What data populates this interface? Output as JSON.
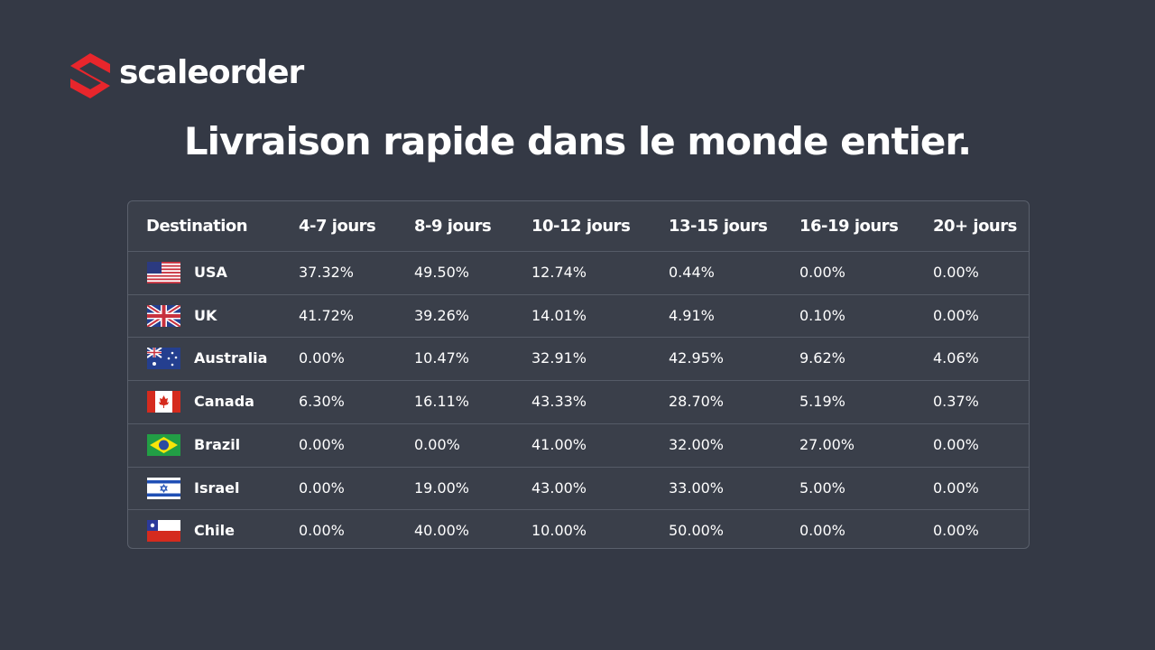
{
  "logo": {
    "text": "scaleorder"
  },
  "title": "Livraison rapide dans le monde entier.",
  "table": {
    "header": [
      "Destination",
      "4-7 jours",
      "8-9 jours",
      "10-12 jours",
      "13-15 jours",
      "16-19 jours",
      "20+ jours"
    ],
    "rows": [
      [
        "USA",
        "37.32%",
        "49.50%",
        "12.74%",
        "0.44%",
        "0.00%",
        "0.00%"
      ],
      [
        "UK",
        "41.72%",
        "39.26%",
        "14.01%",
        "4.91%",
        "0.10%",
        "0.00%"
      ],
      [
        "Australia",
        "0.00%",
        "10.47%",
        "32.91%",
        "42.95%",
        "9.62%",
        "4.06%"
      ],
      [
        "Canada",
        "6.30%",
        "16.11%",
        "43.33%",
        "28.70%",
        "5.19%",
        "0.37%"
      ],
      [
        "Brazil",
        "0.00%",
        "0.00%",
        "41.00%",
        "32.00%",
        "27.00%",
        "0.00%"
      ],
      [
        "Israel",
        "0.00%",
        "19.00%",
        "43.00%",
        "33.00%",
        "5.00%",
        "0.00%"
      ],
      [
        "Chile",
        "0.00%",
        "40.00%",
        "10.00%",
        "50.00%",
        "0.00%",
        "0.00%"
      ]
    ]
  }
}
